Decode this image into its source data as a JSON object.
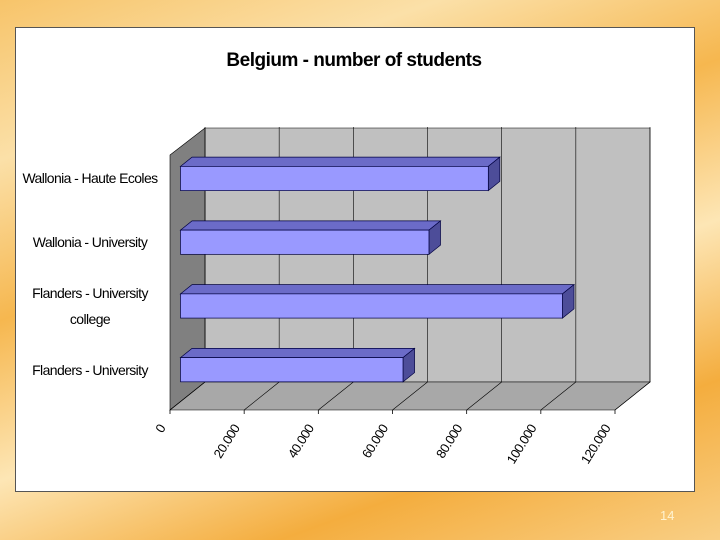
{
  "chart_data": {
    "type": "bar3d",
    "title": "Belgium - number of students",
    "categories": [
      "Wallonia - Haute Ecoles",
      "Wallonia - University",
      "Flanders - University college",
      "Flanders - University"
    ],
    "values": [
      83000,
      67000,
      103000,
      60000
    ],
    "color": "#9999ff",
    "xlim": [
      0,
      120000
    ],
    "xticks": [
      0,
      {
        "value": 20000,
        "label": "20.000"
      },
      {
        "value": 40000,
        "label": "40.000"
      },
      {
        "value": 60000,
        "label": "60.000"
      },
      {
        "value": 80000,
        "label": "80.000"
      },
      {
        "value": 100000,
        "label": "100.000"
      },
      {
        "value": 120000,
        "label": "120.000"
      }
    ],
    "grid": true
  },
  "page_number": "14"
}
